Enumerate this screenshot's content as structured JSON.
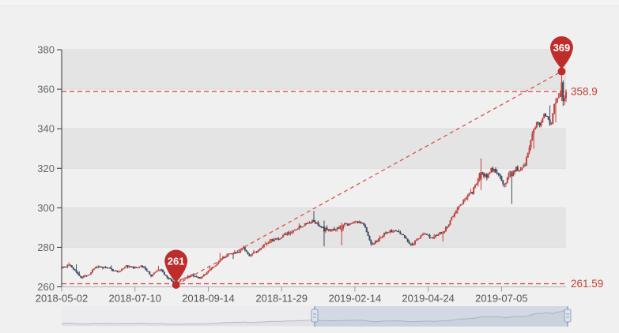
{
  "chart_data": {
    "type": "candlestick",
    "title": "",
    "xlabel": "",
    "ylabel": "",
    "legend": "none",
    "grid": "horizontal-bands",
    "date_start": "2018-05-02",
    "date_end": "2019-09-05",
    "n_points": 345,
    "ylim": [
      260,
      380
    ],
    "y_ticks": [
      380,
      360,
      340,
      320,
      300,
      280,
      260
    ],
    "x_ticks": [
      {
        "i": 0,
        "label": "2018-05-02"
      },
      {
        "i": 50,
        "label": "2018-07-10"
      },
      {
        "i": 100,
        "label": "2018-09-14"
      },
      {
        "i": 150,
        "label": "2018-11-29"
      },
      {
        "i": 200,
        "label": "2019-02-14"
      },
      {
        "i": 250,
        "label": "2019-04-24"
      },
      {
        "i": 300,
        "label": "2019-07-05"
      }
    ],
    "price_anchors": [
      [
        0,
        270
      ],
      [
        3,
        270.5
      ],
      [
        6,
        271
      ],
      [
        13,
        264.5
      ],
      [
        18,
        266
      ],
      [
        23,
        270
      ],
      [
        31,
        269.5
      ],
      [
        38,
        267.5
      ],
      [
        44,
        270.5
      ],
      [
        51,
        269.5
      ],
      [
        55,
        270.5
      ],
      [
        61,
        265.8
      ],
      [
        67,
        269
      ],
      [
        73,
        264
      ],
      [
        78,
        261.8
      ],
      [
        83,
        264.5
      ],
      [
        89,
        266
      ],
      [
        94,
        264.5
      ],
      [
        99,
        267
      ],
      [
        106,
        272
      ],
      [
        113,
        276.5
      ],
      [
        120,
        277.5
      ],
      [
        124,
        279.5
      ],
      [
        128,
        276
      ],
      [
        132,
        277.5
      ],
      [
        136,
        280
      ],
      [
        141,
        283
      ],
      [
        148,
        284.5
      ],
      [
        154,
        287
      ],
      [
        160,
        289.5
      ],
      [
        166,
        291.5
      ],
      [
        171,
        293.5
      ],
      [
        176,
        291
      ],
      [
        182,
        288.5
      ],
      [
        187,
        289.5
      ],
      [
        193,
        291.5
      ],
      [
        198,
        292
      ],
      [
        203,
        293.5
      ],
      [
        207,
        290
      ],
      [
        211,
        281.5
      ],
      [
        216,
        284
      ],
      [
        221,
        287.5
      ],
      [
        226,
        288.5
      ],
      [
        232,
        287
      ],
      [
        236,
        283
      ],
      [
        239,
        281.5
      ],
      [
        244,
        285
      ],
      [
        248,
        287
      ],
      [
        252,
        284.5
      ],
      [
        256,
        286.5
      ],
      [
        260,
        287.5
      ],
      [
        264,
        292
      ],
      [
        270,
        300
      ],
      [
        275,
        304
      ],
      [
        280,
        308
      ],
      [
        286,
        318
      ],
      [
        290,
        316
      ],
      [
        293,
        320
      ],
      [
        298,
        317
      ],
      [
        302,
        312
      ],
      [
        306,
        318
      ],
      [
        310,
        320
      ],
      [
        313,
        319
      ],
      [
        316,
        322
      ],
      [
        320,
        335
      ],
      [
        324,
        344
      ],
      [
        326,
        342
      ],
      [
        329,
        347
      ],
      [
        332,
        345
      ],
      [
        334,
        341
      ],
      [
        336,
        352
      ],
      [
        339,
        355
      ],
      [
        341,
        364
      ],
      [
        342,
        355
      ],
      [
        344,
        358.9
      ]
    ],
    "special_candles": [
      {
        "i": 78,
        "o": 262.6,
        "h": 263.2,
        "l": 261.0,
        "c": 262.0
      },
      {
        "i": 179,
        "o": 290.5,
        "h": 293.5,
        "l": 280.5,
        "c": 288.0
      },
      {
        "i": 191,
        "o": 288.0,
        "h": 292.5,
        "l": 281.0,
        "c": 289.5
      },
      {
        "i": 286,
        "o": 314.0,
        "h": 325.0,
        "l": 309.0,
        "c": 318.0
      },
      {
        "i": 307,
        "o": 317.5,
        "h": 318.5,
        "l": 302.0,
        "c": 316.0
      },
      {
        "i": 341,
        "o": 356.0,
        "h": 369.0,
        "l": 354.0,
        "c": 363.5
      },
      {
        "i": 342,
        "o": 363.5,
        "h": 364.5,
        "l": 351.5,
        "c": 354.0
      },
      {
        "i": 343,
        "o": 354.0,
        "h": 357.0,
        "l": 352.0,
        "c": 355.5
      },
      {
        "i": 344,
        "o": 355.5,
        "h": 360.0,
        "l": 353.5,
        "c": 358.9
      }
    ],
    "markers": [
      {
        "label": "261",
        "value": 261,
        "i": 78,
        "type": "low-pin"
      },
      {
        "label": "369",
        "value": 369,
        "i": 341,
        "type": "high-pin"
      }
    ],
    "plotlines": [
      {
        "label": "358.9",
        "value": 358.9
      },
      {
        "label": "261.59",
        "value": 261.59
      }
    ],
    "trendline": {
      "from_marker": 0,
      "to_marker": 1,
      "style": "dashed"
    },
    "navigator": {
      "selection_start_i": 172,
      "selection_end_i": 344
    }
  },
  "style": {
    "bg": "#f0f0f1",
    "band": "#e4e4e5",
    "grid_line": "#dbdbdd",
    "axis_line": "#333333",
    "x_axis_line": "#b2b2b6",
    "tick": "#666666",
    "axis_label": "#666666",
    "x_label": "#555555",
    "up": "#c0413a",
    "down": "#394a5e",
    "pin": "#bf2c2c",
    "pin_text": "#ffffff",
    "dash": "#d9534c",
    "dash_label": "#c44135",
    "nav_bg": "#ececee",
    "nav_area": "#e2e2e4",
    "nav_line": "#b7bbc2",
    "nav_sel": "rgba(125,152,198,0.22)",
    "nav_handle_fill": "#dde3ec",
    "nav_handle_stroke": "#8fa2c0"
  }
}
